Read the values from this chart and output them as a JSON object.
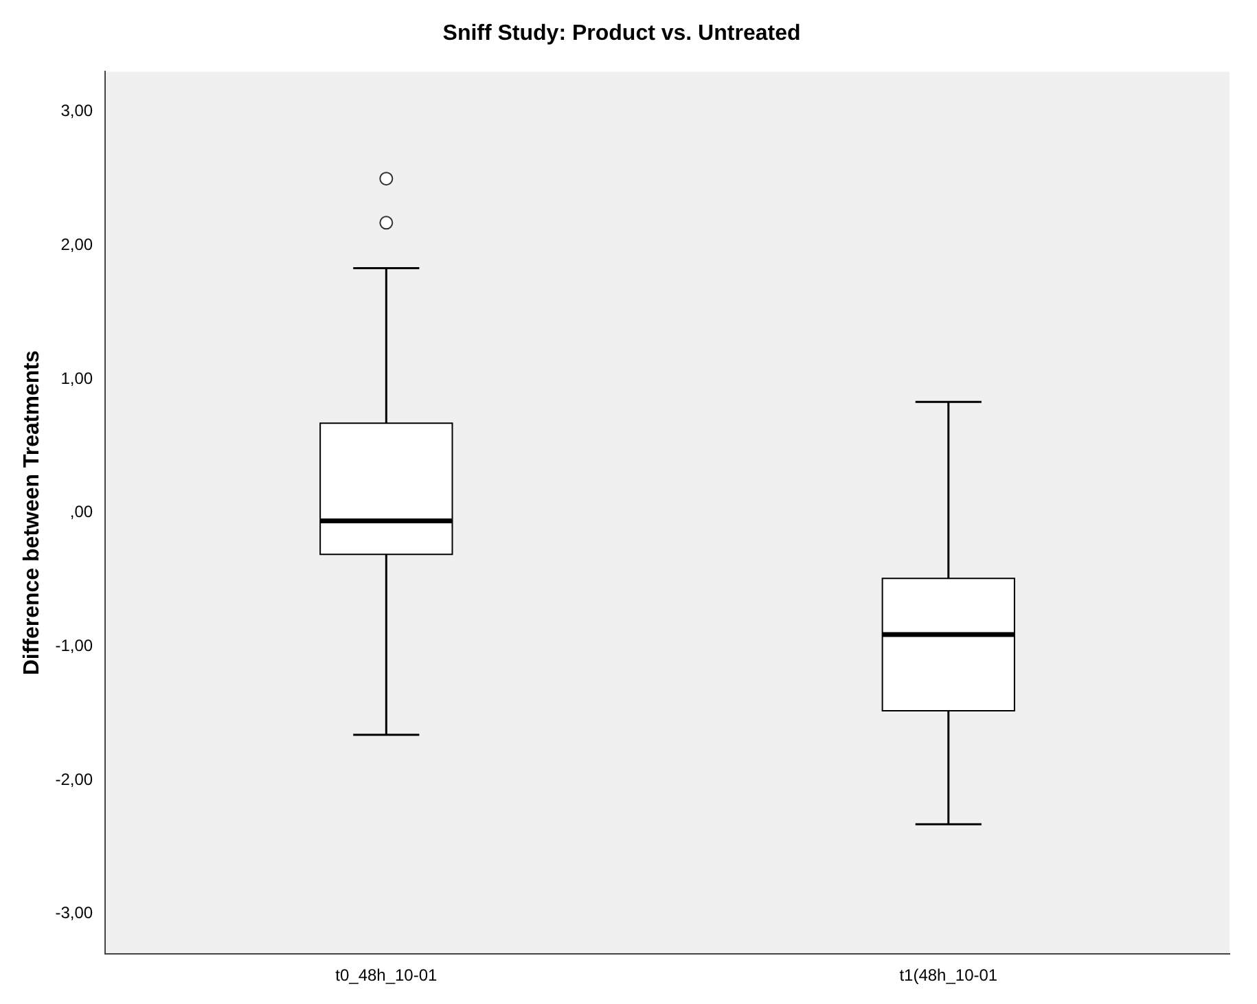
{
  "chart_data": {
    "type": "box",
    "title": "Sniff Study: Product vs. Untreated",
    "ylabel": "Difference between Treatments",
    "categories": [
      "t0_48h_10-01",
      "t1(48h_10-01"
    ],
    "boxes": [
      {
        "low": -1.66,
        "q1": -0.31,
        "median": -0.06,
        "q3": 0.67,
        "high": 1.83,
        "outliers": [
          2.5,
          2.17
        ]
      },
      {
        "low": -2.33,
        "q1": -1.48,
        "median": -0.91,
        "q3": -0.49,
        "high": 0.83
      }
    ],
    "color": "#ffffff",
    "ylim": [
      -3.3,
      3.3
    ],
    "yticks": [
      {
        "value": -3,
        "label": "-3,00"
      },
      {
        "value": -2,
        "label": "-2,00"
      },
      {
        "value": -1,
        "label": "-1,00"
      },
      {
        "value": 0,
        "label": ",00"
      },
      {
        "value": 1,
        "label": "1,00"
      },
      {
        "value": 2,
        "label": "2,00"
      },
      {
        "value": 3,
        "label": "3,00"
      }
    ],
    "grid": false,
    "legend": false
  }
}
